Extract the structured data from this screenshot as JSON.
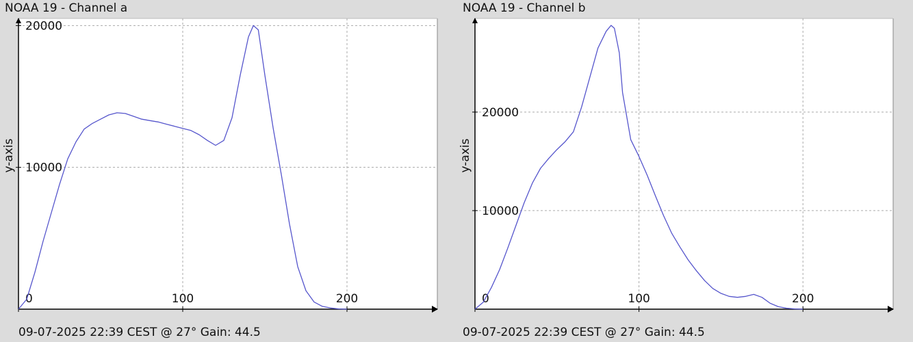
{
  "panels": [
    {
      "title": "NOAA 19 - Channel a",
      "footer": "09-07-2025 22:39 CEST @ 27° Gain: 44.5"
    },
    {
      "title": "NOAA 19 - Channel b",
      "footer": "09-07-2025 22:39 CEST @ 27° Gain: 44.5"
    }
  ],
  "chart_data": [
    {
      "type": "line",
      "title": "NOAA 19 - Channel a",
      "xlabel": "",
      "ylabel": "y-axis",
      "xlim": [
        0,
        255
      ],
      "ylim": [
        0,
        20500
      ],
      "xticks": [
        0,
        100,
        200
      ],
      "yticks": [
        10000,
        20000
      ],
      "grid": true,
      "line_color": "#5555cc",
      "series": [
        {
          "x": [
            0,
            5,
            10,
            15,
            20,
            25,
            30,
            35,
            40,
            45,
            50,
            55,
            60,
            65,
            70,
            75,
            80,
            85,
            90,
            95,
            100,
            105,
            110,
            115,
            120,
            125,
            130,
            135,
            140,
            143,
            146,
            150,
            155,
            160,
            165,
            170,
            175,
            180,
            185,
            190,
            195,
            200
          ],
          "y": [
            0,
            700,
            2600,
            4800,
            6800,
            8800,
            10600,
            11800,
            12700,
            13100,
            13400,
            13700,
            13850,
            13800,
            13600,
            13400,
            13300,
            13200,
            13050,
            12900,
            12750,
            12600,
            12300,
            11900,
            11550,
            11900,
            13500,
            16500,
            19200,
            20000,
            19700,
            16500,
            12800,
            9500,
            6000,
            3000,
            1300,
            500,
            200,
            80,
            20,
            0
          ]
        }
      ]
    },
    {
      "type": "line",
      "title": "NOAA 19 - Channel b",
      "xlabel": "",
      "ylabel": "y-axis",
      "xlim": [
        0,
        255
      ],
      "ylim": [
        0,
        29500
      ],
      "xticks": [
        0,
        100,
        200
      ],
      "yticks": [
        10000,
        20000
      ],
      "grid": true,
      "line_color": "#5555cc",
      "series": [
        {
          "x": [
            0,
            5,
            10,
            15,
            20,
            25,
            30,
            35,
            40,
            45,
            50,
            55,
            60,
            65,
            70,
            75,
            80,
            83,
            85,
            88,
            90,
            95,
            100,
            105,
            110,
            115,
            120,
            125,
            130,
            135,
            140,
            145,
            150,
            155,
            160,
            165,
            170,
            175,
            180,
            185,
            190,
            195,
            200
          ],
          "y": [
            0,
            700,
            2200,
            4000,
            6200,
            8500,
            10800,
            12800,
            14300,
            15300,
            16200,
            17000,
            18000,
            20500,
            23500,
            26500,
            28200,
            28800,
            28500,
            26000,
            22000,
            17200,
            15500,
            13600,
            11500,
            9500,
            7700,
            6300,
            5000,
            3900,
            2900,
            2100,
            1600,
            1300,
            1200,
            1300,
            1500,
            1200,
            600,
            250,
            100,
            30,
            0
          ]
        }
      ]
    }
  ]
}
